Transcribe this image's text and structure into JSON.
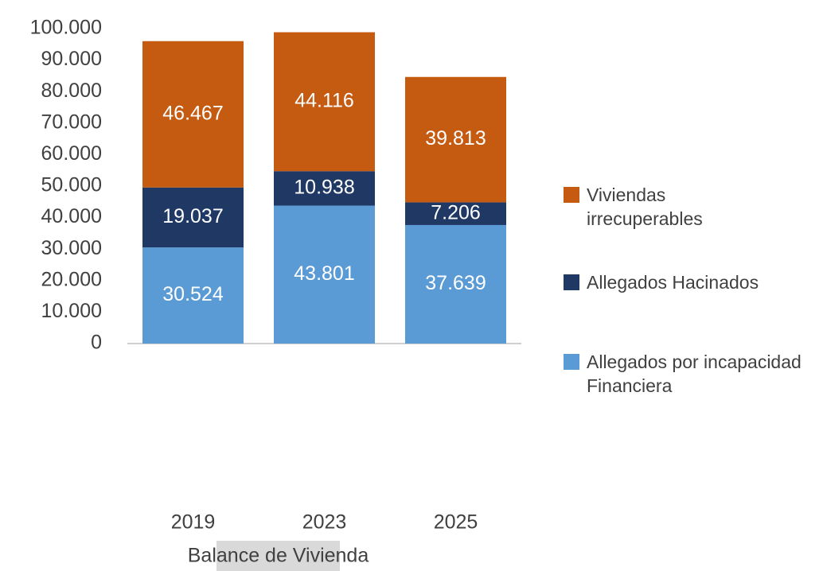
{
  "chart_data": {
    "type": "stacked_bar",
    "xlabel": "Balance de Vivienda",
    "categories": [
      "2019",
      "2023",
      "2025"
    ],
    "series": [
      {
        "name": "Allegados por incapacidad Financiera",
        "color": "#5b9bd5",
        "values": [
          30524,
          43801,
          37639
        ],
        "value_labels": [
          "30.524",
          "43.801",
          "37.639"
        ]
      },
      {
        "name": "Allegados Hacinados",
        "color": "#203864",
        "values": [
          19037,
          10938,
          7206
        ],
        "value_labels": [
          "19.037",
          "10.938",
          "7.206"
        ]
      },
      {
        "name": "Viviendas irrecuperables",
        "color": "#c55a11",
        "values": [
          46467,
          44116,
          39813
        ],
        "value_labels": [
          "46.467",
          "44.116",
          "39.813"
        ]
      }
    ],
    "ylim": [
      0,
      100000
    ],
    "yticks": [
      0,
      {
        "value": 10000,
        "label": "10.000"
      },
      {
        "value": 20000,
        "label": "20.000"
      },
      {
        "value": 30000,
        "label": "30.000"
      },
      {
        "value": 40000,
        "label": "40.000"
      },
      {
        "value": 50000,
        "label": "50.000"
      },
      {
        "value": 60000,
        "label": "60.000"
      },
      {
        "value": 70000,
        "label": "70.000"
      },
      {
        "value": 80000,
        "label": "80.000"
      },
      {
        "value": 90000,
        "label": "90.000"
      },
      {
        "value": 100000,
        "label": "100.000"
      }
    ],
    "legend": "right"
  }
}
